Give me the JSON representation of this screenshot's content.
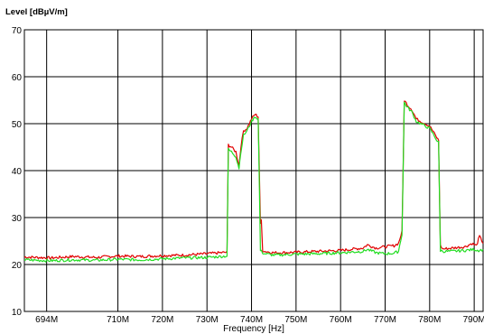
{
  "chart_data": {
    "type": "line",
    "title": "",
    "ylabel": "Level [dBµV/m]",
    "xlabel": "Frequency [Hz]",
    "xlim": [
      689,
      792
    ],
    "ylim": [
      10,
      70
    ],
    "grid": true,
    "legend": "none",
    "x_ticks": [
      {
        "value": 694,
        "label": "694M"
      },
      {
        "value": 710,
        "label": "710M"
      },
      {
        "value": 720,
        "label": "720M"
      },
      {
        "value": 730,
        "label": "730M"
      },
      {
        "value": 740,
        "label": "740M"
      },
      {
        "value": 750,
        "label": "750M"
      },
      {
        "value": 760,
        "label": "760M"
      },
      {
        "value": 770,
        "label": "770M"
      },
      {
        "value": 780,
        "label": "780M"
      },
      {
        "value": 790,
        "label": "790M"
      }
    ],
    "y_ticks": [
      {
        "value": 10,
        "label": "10"
      },
      {
        "value": 20,
        "label": "20"
      },
      {
        "value": 30,
        "label": "30"
      },
      {
        "value": 40,
        "label": "40"
      },
      {
        "value": 50,
        "label": "50"
      },
      {
        "value": 60,
        "label": "60"
      },
      {
        "value": 70,
        "label": "70"
      }
    ],
    "series": [
      {
        "color": "#e00000",
        "x": [
          689,
          695,
          700,
          705,
          710,
          715,
          720,
          725,
          730,
          734.5,
          734.8,
          735.5,
          736.5,
          737.2,
          737.6,
          738.2,
          739,
          740,
          740.8,
          741.5,
          742,
          742.2,
          742.5,
          743,
          745,
          750,
          755,
          760,
          765,
          766,
          768,
          770,
          772,
          773,
          773.8,
          774.3,
          775,
          776,
          777,
          778,
          779,
          780,
          781,
          781.6,
          782,
          782.4,
          783,
          785,
          788,
          789.5,
          790.5,
          791.2,
          792
        ],
        "y": [
          21.6,
          21.4,
          21.7,
          21.5,
          21.8,
          21.7,
          21.9,
          22.0,
          22.3,
          22.6,
          45.5,
          45.0,
          44.0,
          41.0,
          45.0,
          48.5,
          49.0,
          51.0,
          52.0,
          51.5,
          28.5,
          29.5,
          23.0,
          22.8,
          22.5,
          22.6,
          22.8,
          23.0,
          23.5,
          24.2,
          23.5,
          23.8,
          24.0,
          24.5,
          27.0,
          55.0,
          54.0,
          53.0,
          51.0,
          50.5,
          50.0,
          49.5,
          48.0,
          47.0,
          46.5,
          24.0,
          23.3,
          23.5,
          23.8,
          24.5,
          24.0,
          26.0,
          24.5
        ]
      },
      {
        "color": "#22dd22",
        "x": [
          689,
          695,
          700,
          705,
          710,
          715,
          720,
          725,
          730,
          734.5,
          734.8,
          735.5,
          736.5,
          737.2,
          737.6,
          738.2,
          739,
          740,
          740.8,
          741.5,
          742,
          742.5,
          743,
          745,
          750,
          755,
          760,
          765,
          766,
          768,
          770,
          772,
          773,
          773.8,
          774.3,
          775,
          776,
          777,
          778,
          779,
          780,
          781,
          781.6,
          782,
          782.4,
          783,
          785,
          788,
          790,
          791,
          792
        ],
        "y": [
          21.0,
          20.8,
          21.0,
          20.9,
          21.1,
          21.0,
          21.2,
          21.4,
          21.5,
          21.8,
          44.5,
          44.0,
          43.0,
          40.5,
          44.0,
          47.5,
          48.5,
          50.5,
          51.5,
          51.0,
          23.0,
          22.5,
          22.3,
          22.0,
          22.2,
          22.3,
          22.5,
          22.8,
          23.2,
          22.5,
          22.3,
          22.4,
          22.8,
          26.5,
          54.5,
          53.5,
          52.5,
          50.5,
          50.0,
          49.5,
          49.0,
          47.5,
          46.5,
          46.0,
          23.0,
          22.8,
          22.8,
          23.0,
          23.2,
          23.0,
          23.2
        ]
      }
    ]
  }
}
